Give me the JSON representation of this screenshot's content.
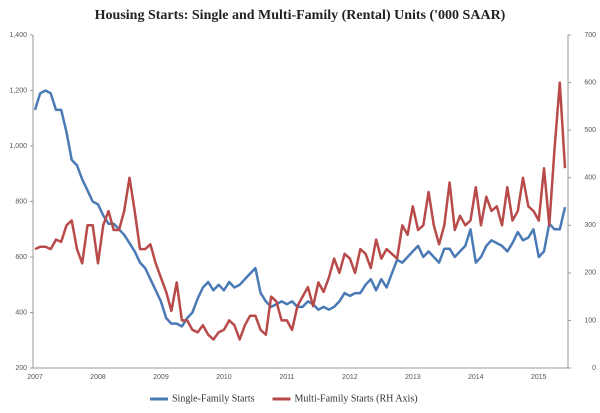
{
  "chart_data": {
    "type": "line",
    "title": "Housing Starts: Single and Multi-Family (Rental) Units  ('000 SAAR)",
    "categories": [
      "2007",
      null,
      null,
      null,
      null,
      null,
      null,
      null,
      null,
      null,
      null,
      null,
      "2008",
      null,
      null,
      null,
      null,
      null,
      null,
      null,
      null,
      null,
      null,
      null,
      "2009",
      null,
      null,
      null,
      null,
      null,
      null,
      null,
      null,
      null,
      null,
      null,
      "2010",
      null,
      null,
      null,
      null,
      null,
      null,
      null,
      null,
      null,
      null,
      null,
      "2011",
      null,
      null,
      null,
      null,
      null,
      null,
      null,
      null,
      null,
      null,
      null,
      "2012",
      null,
      null,
      null,
      null,
      null,
      null,
      null,
      null,
      null,
      null,
      null,
      "2013",
      null,
      null,
      null,
      null,
      null,
      null,
      null,
      null,
      null,
      null,
      null,
      "2014",
      null,
      null,
      null,
      null,
      null,
      null,
      null,
      null,
      null,
      null,
      null,
      "2015",
      null,
      null,
      null,
      null,
      null
    ],
    "series": [
      {
        "name": "Single-Family Starts",
        "color": "#4a7ab5",
        "values": [
          1130,
          1190,
          1200,
          1190,
          1130,
          1130,
          1050,
          950,
          930,
          880,
          840,
          800,
          790,
          750,
          720,
          720,
          700,
          680,
          650,
          620,
          580,
          560,
          520,
          480,
          440,
          380,
          360,
          360,
          350,
          380,
          400,
          450,
          490,
          510,
          480,
          500,
          480,
          510,
          490,
          500,
          520,
          540,
          560,
          470,
          440,
          420,
          430,
          440,
          430,
          440,
          420,
          420,
          440,
          430,
          410,
          420,
          410,
          420,
          440,
          470,
          460,
          470,
          470,
          500,
          520,
          480,
          520,
          490,
          540,
          590,
          580,
          600,
          620,
          640,
          600,
          620,
          600,
          580,
          630,
          630,
          600,
          620,
          640,
          700,
          580,
          600,
          640,
          660,
          650,
          640,
          620,
          650,
          690,
          660,
          670,
          700,
          600,
          620,
          720,
          700,
          700,
          780
        ]
      },
      {
        "name": "Multi-Family Starts (RH Axis)",
        "color": "#b84a4a",
        "axis": "y2",
        "values": [
          250,
          255,
          255,
          250,
          270,
          265,
          300,
          310,
          250,
          220,
          300,
          300,
          220,
          300,
          330,
          290,
          290,
          330,
          400,
          330,
          250,
          250,
          260,
          220,
          190,
          160,
          120,
          180,
          100,
          100,
          80,
          75,
          90,
          70,
          60,
          75,
          80,
          100,
          90,
          60,
          90,
          110,
          110,
          80,
          70,
          150,
          140,
          100,
          100,
          80,
          130,
          150,
          170,
          130,
          180,
          160,
          190,
          230,
          200,
          240,
          230,
          200,
          250,
          240,
          210,
          270,
          230,
          250,
          240,
          230,
          300,
          280,
          340,
          290,
          300,
          370,
          300,
          260,
          300,
          390,
          290,
          320,
          300,
          310,
          380,
          300,
          360,
          330,
          340,
          300,
          380,
          310,
          330,
          400,
          340,
          330,
          310,
          420,
          300,
          460,
          600,
          420
        ]
      }
    ],
    "ylim": [
      200,
      1400
    ],
    "yticks": [
      200,
      400,
      600,
      800,
      {
        "value": 1000,
        "label": "1,000"
      },
      {
        "value": 1200,
        "label": "1,200"
      },
      {
        "value": 1400,
        "label": "1,400"
      }
    ],
    "y2lim": [
      0,
      700
    ],
    "y2ticks": [
      0,
      100,
      200,
      300,
      400,
      500,
      600,
      700
    ],
    "grid": false
  }
}
